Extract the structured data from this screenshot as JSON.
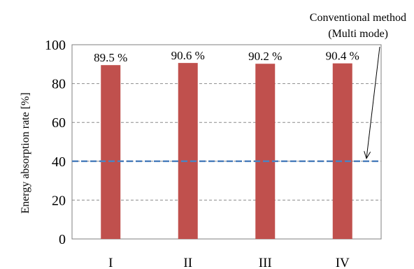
{
  "chart_data": {
    "type": "bar",
    "categories": [
      "I",
      "II",
      "III",
      "IV"
    ],
    "series": [
      {
        "values": [
          89.5,
          90.6,
          90.2,
          90.4
        ],
        "color": "#c0504d"
      }
    ],
    "data_labels": [
      "89.5 %",
      "90.6 %",
      "90.2 %",
      "90.4 %"
    ],
    "title": "",
    "xlabel": "",
    "ylabel": "Energy absorption rate [%]",
    "ylim": [
      0,
      100
    ],
    "yticks": [
      0,
      20,
      40,
      60,
      80,
      100
    ],
    "grid": true,
    "reference_line": {
      "value": 40,
      "color": "#4f81bd",
      "label_line1": "Conventional method",
      "label_line2": "(Multi mode)"
    }
  }
}
